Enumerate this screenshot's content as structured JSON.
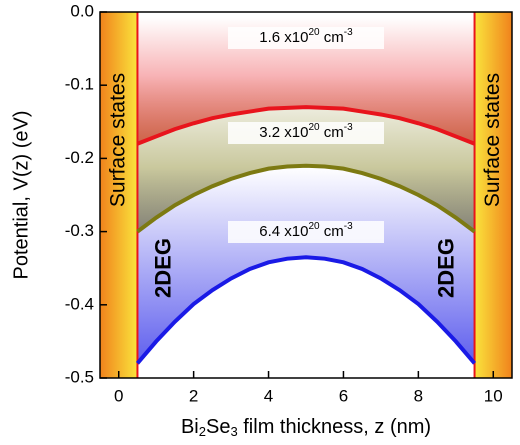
{
  "chart_data": {
    "type": "line",
    "x_label": [
      "Bi",
      "2",
      "Se",
      "3",
      " film thickness, z (nm)"
    ],
    "y_label": "Potential, V(z) (eV)",
    "x": [
      0.5,
      1,
      1.5,
      2,
      2.5,
      3,
      3.5,
      4,
      4.5,
      5,
      5.5,
      6,
      6.5,
      7,
      7.5,
      8,
      8.5,
      9,
      9.5
    ],
    "series": [
      {
        "label": [
          "1.6 x10",
          "20",
          " cm",
          "-3"
        ],
        "color": "#e8141c",
        "values": [
          -0.18,
          -0.17,
          -0.16,
          -0.152,
          -0.145,
          -0.14,
          -0.136,
          -0.132,
          -0.131,
          -0.13,
          -0.131,
          -0.132,
          -0.136,
          -0.14,
          -0.145,
          -0.152,
          -0.16,
          -0.17,
          -0.18
        ]
      },
      {
        "label": [
          "3.2 x10",
          "20",
          " cm",
          "-3"
        ],
        "color": "#7d7a12",
        "values": [
          -0.3,
          -0.281,
          -0.264,
          -0.25,
          -0.238,
          -0.228,
          -0.22,
          -0.214,
          -0.211,
          -0.21,
          -0.211,
          -0.214,
          -0.22,
          -0.228,
          -0.238,
          -0.25,
          -0.264,
          -0.281,
          -0.3
        ]
      },
      {
        "label": [
          "6.4 x10",
          "20",
          " cm",
          "-3"
        ],
        "color": "#1a1ae6",
        "values": [
          -0.48,
          -0.45,
          -0.423,
          -0.399,
          -0.38,
          -0.364,
          -0.351,
          -0.342,
          -0.337,
          -0.335,
          -0.337,
          -0.342,
          -0.351,
          -0.364,
          -0.38,
          -0.399,
          -0.423,
          -0.45,
          -0.48
        ]
      }
    ],
    "film_edges": [
      0.5,
      9.5
    ],
    "surface_labels": [
      "Surface states",
      "Surface states"
    ],
    "layer_labels": [
      "2DEG",
      "2DEG"
    ],
    "layer_color": "#1a1ae6",
    "xlim": [
      -0.5,
      10.5
    ],
    "xticks": [
      0,
      2,
      4,
      6,
      8,
      10
    ],
    "ylim": [
      -0.5,
      0
    ],
    "yticks": [
      {
        "value": 0,
        "label": "0.0"
      },
      -0.1,
      -0.2,
      -0.3,
      -0.4,
      -0.5
    ]
  }
}
